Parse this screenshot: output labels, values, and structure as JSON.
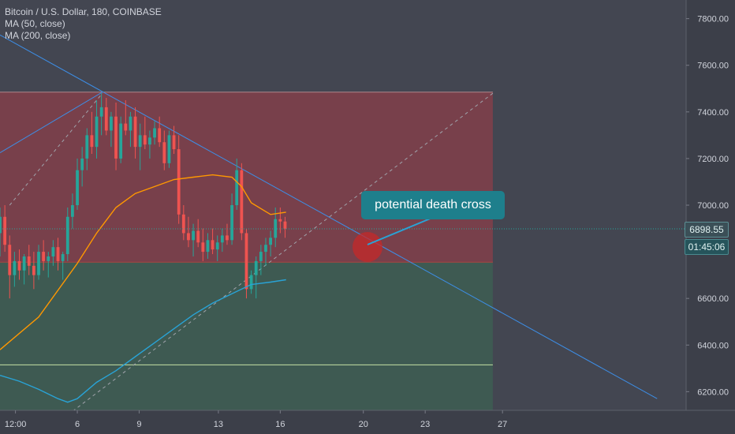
{
  "legend": {
    "title": "Bitcoin / U.S. Dollar, 180, COINBASE",
    "ma50": "MA (50, close)",
    "ma200": "MA (200, close)"
  },
  "annotation": {
    "text": "potential death cross"
  },
  "price_tags": {
    "current": "6898.55",
    "countdown": "01:45:06"
  },
  "colors": {
    "background": "#434651",
    "axis_panel": "#3c3f49",
    "up": "#26a69a",
    "down": "#ef5350",
    "ma50": "#ff9800",
    "ma200": "#29a3d6",
    "trendline": "#3d8ee6",
    "resistance_zone": "#8a3f4a",
    "support_zone": "#3d5f52",
    "callout": "#1e7f8c"
  },
  "chart_data": {
    "type": "candlestick",
    "x_ticks": [
      "12:00",
      "6",
      "9",
      "13",
      "16",
      "20",
      "23",
      "27"
    ],
    "y_ticks": [
      "6200.00",
      "6400.00",
      "6600.00",
      "6800.00",
      "7000.00",
      "7200.00",
      "7400.00",
      "7600.00",
      "7800.00"
    ],
    "ylim": [
      6120,
      7880
    ],
    "current_price": 6898.55,
    "series": [
      {
        "name": "MA (50, close)",
        "type": "line",
        "x": [
          0,
          2,
          4,
          5,
          6,
          7,
          8,
          9,
          10,
          11,
          12,
          12.5,
          13,
          14,
          14.8
        ],
        "values": [
          6380,
          6520,
          6750,
          6880,
          6990,
          7050,
          7080,
          7110,
          7120,
          7130,
          7120,
          7080,
          7010,
          6960,
          6970
        ]
      },
      {
        "name": "MA (200, close)",
        "type": "line",
        "x": [
          0,
          1,
          2,
          3,
          3.5,
          4,
          5,
          6,
          7,
          8,
          9,
          10,
          11,
          12,
          13,
          14,
          14.8
        ],
        "values": [
          6270,
          6245,
          6210,
          6170,
          6155,
          6170,
          6240,
          6290,
          6350,
          6410,
          6470,
          6530,
          6580,
          6620,
          6660,
          6670,
          6680
        ]
      }
    ],
    "lines": [
      {
        "kind": "trendline",
        "from": [
          0,
          7730
        ],
        "to": [
          34,
          6170
        ]
      },
      {
        "kind": "trendline",
        "from": [
          0,
          7225
        ],
        "to": [
          5.3,
          7485
        ]
      },
      {
        "kind": "dashed",
        "from": [
          3.5,
          6100
        ],
        "to": [
          25.5,
          7480
        ]
      },
      {
        "kind": "dashed",
        "from": [
          0.5,
          7000
        ],
        "to": [
          5.3,
          7480
        ]
      }
    ],
    "zones": [
      {
        "kind": "resistance",
        "top": 7485,
        "bottom": 6755,
        "x_end": 25.5
      },
      {
        "kind": "support",
        "top": 6755,
        "bottom": 6120,
        "x_end": 25.5
      },
      {
        "kind": "level",
        "value": 6315,
        "x_end": 25.5
      }
    ],
    "candles": [
      [
        0,
        6880,
        6990,
        6780,
        6950
      ],
      [
        0.25,
        6950,
        7000,
        6800,
        6830
      ],
      [
        0.5,
        6830,
        6870,
        6600,
        6700
      ],
      [
        0.75,
        6700,
        6800,
        6650,
        6760
      ],
      [
        1,
        6760,
        6810,
        6680,
        6720
      ],
      [
        1.25,
        6720,
        6790,
        6660,
        6780
      ],
      [
        1.5,
        6780,
        6830,
        6700,
        6740
      ],
      [
        1.75,
        6740,
        6800,
        6640,
        6700
      ],
      [
        2,
        6700,
        6830,
        6680,
        6800
      ],
      [
        2.25,
        6800,
        6850,
        6720,
        6760
      ],
      [
        2.5,
        6760,
        6800,
        6690,
        6780
      ],
      [
        2.75,
        6780,
        6850,
        6740,
        6820
      ],
      [
        3,
        6820,
        6860,
        6720,
        6760
      ],
      [
        3.25,
        6760,
        6800,
        6680,
        6790
      ],
      [
        3.5,
        6790,
        6990,
        6760,
        6950
      ],
      [
        3.75,
        6950,
        7050,
        6900,
        7000
      ],
      [
        4,
        7000,
        7200,
        6980,
        7150
      ],
      [
        4.25,
        7150,
        7250,
        7080,
        7200
      ],
      [
        4.5,
        7200,
        7330,
        7150,
        7300
      ],
      [
        4.75,
        7300,
        7400,
        7220,
        7250
      ],
      [
        5,
        7250,
        7450,
        7200,
        7380
      ],
      [
        5.25,
        7380,
        7480,
        7300,
        7420
      ],
      [
        5.5,
        7420,
        7460,
        7300,
        7320
      ],
      [
        5.75,
        7320,
        7400,
        7250,
        7380
      ],
      [
        6,
        7380,
        7440,
        7150,
        7200
      ],
      [
        6.25,
        7200,
        7380,
        7180,
        7350
      ],
      [
        6.5,
        7350,
        7450,
        7300,
        7320
      ],
      [
        6.75,
        7320,
        7400,
        7250,
        7380
      ],
      [
        7,
        7380,
        7420,
        7200,
        7250
      ],
      [
        7.25,
        7250,
        7350,
        7150,
        7300
      ],
      [
        7.5,
        7300,
        7380,
        7240,
        7260
      ],
      [
        7.75,
        7260,
        7320,
        7200,
        7290
      ],
      [
        8,
        7290,
        7360,
        7260,
        7330
      ],
      [
        8.25,
        7330,
        7380,
        7250,
        7270
      ],
      [
        8.5,
        7270,
        7320,
        7150,
        7180
      ],
      [
        8.75,
        7180,
        7320,
        7160,
        7300
      ],
      [
        9,
        7300,
        7340,
        7220,
        7240
      ],
      [
        9.25,
        7240,
        7300,
        6920,
        6960
      ],
      [
        9.5,
        6960,
        7000,
        6850,
        6880
      ],
      [
        9.75,
        6880,
        6950,
        6820,
        6850
      ],
      [
        10,
        6850,
        6920,
        6780,
        6890
      ],
      [
        10.25,
        6890,
        6940,
        6820,
        6840
      ],
      [
        10.5,
        6840,
        6900,
        6760,
        6800
      ],
      [
        10.75,
        6800,
        6880,
        6770,
        6850
      ],
      [
        11,
        6850,
        6900,
        6790,
        6810
      ],
      [
        11.25,
        6810,
        6870,
        6760,
        6840
      ],
      [
        11.5,
        6840,
        6900,
        6800,
        6870
      ],
      [
        11.75,
        6870,
        6920,
        6830,
        6850
      ],
      [
        12,
        6850,
        7050,
        6830,
        7000
      ],
      [
        12.25,
        7000,
        7200,
        6980,
        7150
      ],
      [
        12.5,
        7150,
        7180,
        6850,
        6880
      ],
      [
        12.75,
        6880,
        6900,
        6600,
        6640
      ],
      [
        13,
        6640,
        6720,
        6620,
        6700
      ],
      [
        13.25,
        6700,
        6780,
        6600,
        6760
      ],
      [
        13.5,
        6760,
        6830,
        6700,
        6800
      ],
      [
        13.75,
        6800,
        6860,
        6740,
        6830
      ],
      [
        14,
        6830,
        6890,
        6780,
        6860
      ],
      [
        14.25,
        6860,
        6990,
        6820,
        6940
      ],
      [
        14.5,
        6940,
        6990,
        6880,
        6930
      ],
      [
        14.75,
        6930,
        6950,
        6860,
        6899
      ]
    ]
  }
}
